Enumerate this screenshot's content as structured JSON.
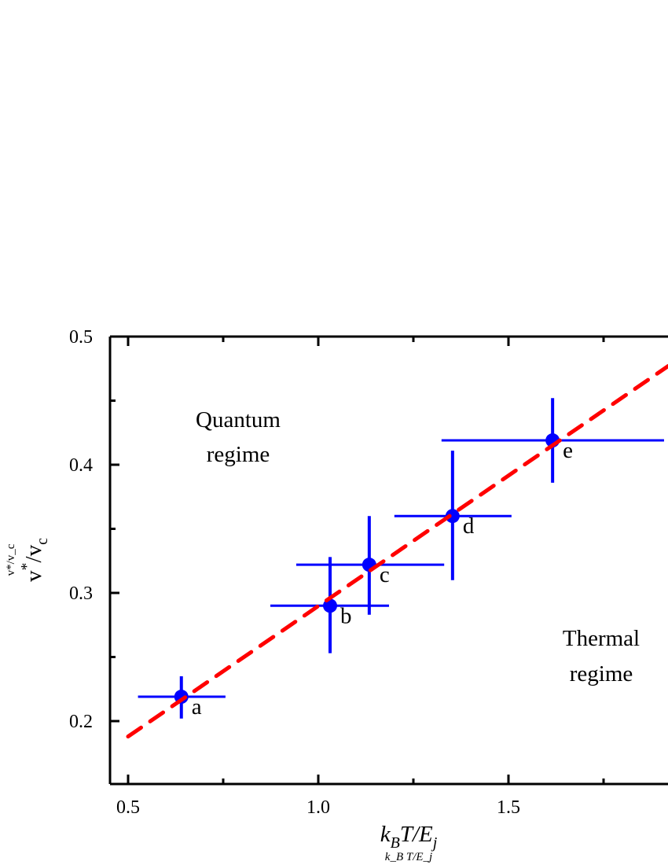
{
  "chart_data": {
    "type": "scatter",
    "title": "",
    "xlabel": "k_B T/E_j",
    "xlabel_parts": {
      "k": "k",
      "k_sub": "B",
      "mid": "T/E",
      "e_sub": "j"
    },
    "ylabel": "v*/v_c",
    "ylabel_parts": {
      "v1": "v",
      "sup": "*",
      "slash": "/v",
      "sub": "c"
    },
    "xlim": [
      0.452,
      1.92
    ],
    "ylim": [
      0.151,
      0.5
    ],
    "x_ticks": [
      0.5,
      1.0,
      1.5
    ],
    "x_tick_labels": [
      "0.5",
      "1.0",
      "1.5"
    ],
    "x_minor_ticks": [
      0.75,
      1.25,
      1.75
    ],
    "y_ticks": [
      0.2,
      0.3,
      0.4,
      0.5
    ],
    "y_tick_labels": [
      "0.2",
      "0.3",
      "0.4",
      "0.5"
    ],
    "y_minor_ticks": [
      0.25,
      0.35,
      0.45
    ],
    "grid": false,
    "points": [
      {
        "label": "a",
        "x": 0.64,
        "y": 0.219,
        "xerr": [
          0.526,
          0.756
        ],
        "yerr": [
          0.202,
          0.235
        ]
      },
      {
        "label": "b",
        "x": 1.031,
        "y": 0.29,
        "xerr": [
          0.874,
          1.186
        ],
        "yerr": [
          0.253,
          0.328
        ]
      },
      {
        "label": "c",
        "x": 1.134,
        "y": 0.322,
        "xerr": [
          0.942,
          1.331
        ],
        "yerr": [
          0.283,
          0.36
        ]
      },
      {
        "label": "d",
        "x": 1.353,
        "y": 0.36,
        "xerr": [
          1.2,
          1.508
        ],
        "yerr": [
          0.31,
          0.411
        ]
      },
      {
        "label": "e",
        "x": 1.616,
        "y": 0.419,
        "xerr": [
          1.324,
          1.909
        ],
        "yerr": [
          0.386,
          0.452
        ]
      }
    ],
    "fit_line": {
      "style": "dashed",
      "x": [
        0.5,
        1.92
      ],
      "y": [
        0.188,
        0.477
      ]
    },
    "annotations": [
      {
        "text": [
          "Quantum",
          "regime"
        ]
      },
      {
        "text": [
          "Thermal",
          "regime"
        ]
      }
    ],
    "colors": {
      "points": "#0000ff",
      "fit": "#ff0000",
      "axes": "#000000"
    }
  }
}
